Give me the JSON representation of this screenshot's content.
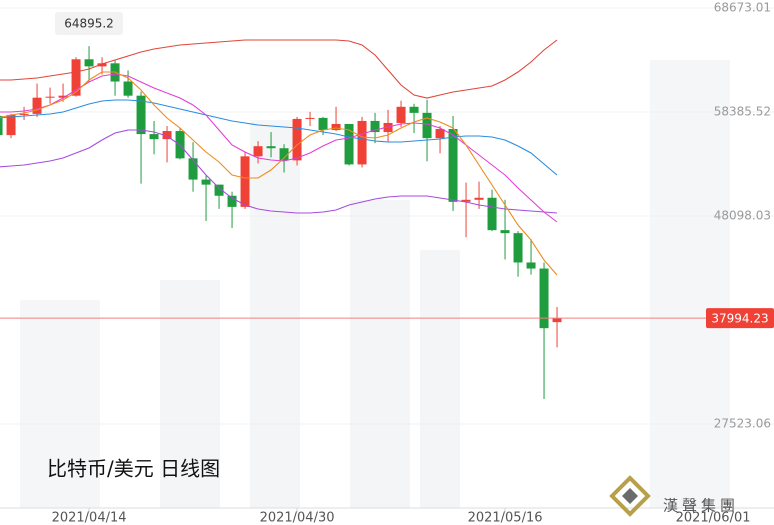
{
  "chart_data": {
    "type": "candlestick",
    "title": "比特币/美元  日线图",
    "watermark": "漢聲集團",
    "up_color": "#ef4136",
    "down_color": "#1f9c3e",
    "open": [
      58000,
      56100,
      58100,
      58200,
      59800,
      59800,
      60000,
      63600,
      62900,
      63200,
      61400,
      60000,
      56200,
      55700,
      56500,
      53800,
      51700,
      51200,
      50100,
      49000,
      54000,
      55000,
      54800,
      53600,
      57700,
      57800,
      56600,
      57200,
      53200,
      57500,
      56400,
      57300,
      58900,
      58300,
      55800,
      56700,
      49500,
      49700,
      49900,
      46700,
      46400,
      43500,
      42900,
      37600
    ],
    "high": [
      58650,
      58200,
      58900,
      61200,
      60800,
      61200,
      63800,
      64895.2,
      63800,
      63500,
      62500,
      60400,
      57500,
      57000,
      56800,
      55400,
      52100,
      51200,
      50500,
      54400,
      55500,
      56400,
      55200,
      57900,
      58400,
      57900,
      58900,
      57200,
      57900,
      58300,
      58600,
      59500,
      59200,
      59600,
      57000,
      58000,
      51400,
      51500,
      50700,
      49700,
      46600,
      45800,
      43500,
      39100
    ],
    "low": [
      55500,
      55800,
      57600,
      57900,
      59200,
      59400,
      59900,
      61300,
      62100,
      60000,
      59800,
      51300,
      54200,
      53400,
      53700,
      50500,
      47600,
      48800,
      46900,
      48800,
      53300,
      53900,
      52400,
      53100,
      57000,
      56100,
      56500,
      53100,
      52900,
      55300,
      55400,
      56900,
      56300,
      53500,
      54300,
      48600,
      46000,
      48800,
      46600,
      43800,
      42100,
      42300,
      30000,
      35100
    ],
    "close": [
      56100,
      58100,
      58200,
      59800,
      59900,
      60000,
      63600,
      62900,
      63200,
      61400,
      60000,
      56200,
      55700,
      56500,
      53800,
      51700,
      51200,
      50100,
      49000,
      54000,
      55000,
      54800,
      53600,
      57700,
      57800,
      56600,
      57200,
      53200,
      57500,
      56400,
      57300,
      58900,
      58300,
      55800,
      56700,
      49500,
      49700,
      49900,
      46700,
      46400,
      43500,
      42900,
      37000,
      37994.23
    ],
    "lines": [
      {
        "color": "#e0463a",
        "values": [
          61550,
          61550,
          61649,
          61748,
          61946,
          62144,
          62342,
          62638,
          63133,
          63529,
          63924,
          64320,
          64617,
          64815,
          65013,
          65111,
          65210,
          65309,
          65408,
          65507,
          65507,
          65507,
          65507,
          65507,
          65507,
          65507,
          65507,
          65408,
          65013,
          64023,
          62540,
          61056,
          60067,
          59770,
          60067,
          60363,
          60561,
          60759,
          60957,
          61550,
          62342,
          63331,
          64518,
          65507
        ]
      },
      {
        "color": "#2a8de0",
        "values": [
          57791,
          57890,
          57989,
          58088,
          58187,
          58385,
          58780,
          59176,
          59473,
          59572,
          59572,
          59473,
          59275,
          58978,
          58681,
          58385,
          58088,
          57791,
          57495,
          57297,
          57099,
          57000,
          56901,
          56802,
          56604,
          56407,
          56209,
          55912,
          55715,
          55516,
          55418,
          55418,
          55516,
          55615,
          55715,
          55912,
          56011,
          56011,
          55912,
          55615,
          55022,
          54329,
          53241,
          52153
        ]
      },
      {
        "color": "#a64be0",
        "values": [
          52944,
          53043,
          53142,
          53340,
          53538,
          53835,
          54329,
          54824,
          55615,
          56308,
          56604,
          56604,
          56407,
          56011,
          55121,
          53637,
          52153,
          50867,
          49877,
          49185,
          48789,
          48591,
          48492,
          48393,
          48393,
          48492,
          48690,
          49185,
          49482,
          49778,
          49976,
          50075,
          50075,
          50075,
          49877,
          49680,
          49482,
          49185,
          48987,
          48789,
          48690,
          48591,
          48492,
          48393
        ]
      },
      {
        "color": "#e23fd8",
        "values": [
          58385,
          58385,
          58484,
          58681,
          59077,
          59770,
          60561,
          61353,
          61946,
          62144,
          61946,
          61353,
          60759,
          60264,
          59770,
          59077,
          58088,
          56604,
          55121,
          54428,
          53835,
          53637,
          53538,
          53835,
          54329,
          55022,
          55615,
          55813,
          56209,
          56604,
          56901,
          57198,
          57297,
          57198,
          56802,
          56110,
          55121,
          54131,
          53142,
          52153,
          50867,
          49680,
          48492,
          47504
        ]
      },
      {
        "color": "#f08a1c",
        "values": [
          57791,
          58088,
          58286,
          58583,
          59077,
          59572,
          60363,
          61550,
          62342,
          62342,
          61748,
          60561,
          59077,
          57791,
          56802,
          55615,
          54428,
          53439,
          52153,
          51856,
          51856,
          52648,
          53835,
          55121,
          56110,
          56604,
          56802,
          56604,
          55912,
          55813,
          56110,
          56802,
          57396,
          57791,
          57396,
          56802,
          55121,
          53142,
          51164,
          49185,
          47207,
          45723,
          43745,
          42261
        ]
      }
    ],
    "ylim": [
      19213,
      69464
    ],
    "yticks": [
      27523.06,
      48098.03,
      58385.52,
      68673.01
    ],
    "xlim": [
      0.15,
      59.69
    ],
    "xticks": [
      {
        "value": 7,
        "label": "2021/04/14"
      },
      {
        "value": 23,
        "label": "2021/04/30"
      },
      {
        "value": 39,
        "label": "2021/05/16"
      },
      {
        "value": 55,
        "label": "2021/06/01"
      }
    ],
    "grid": true
  }
}
